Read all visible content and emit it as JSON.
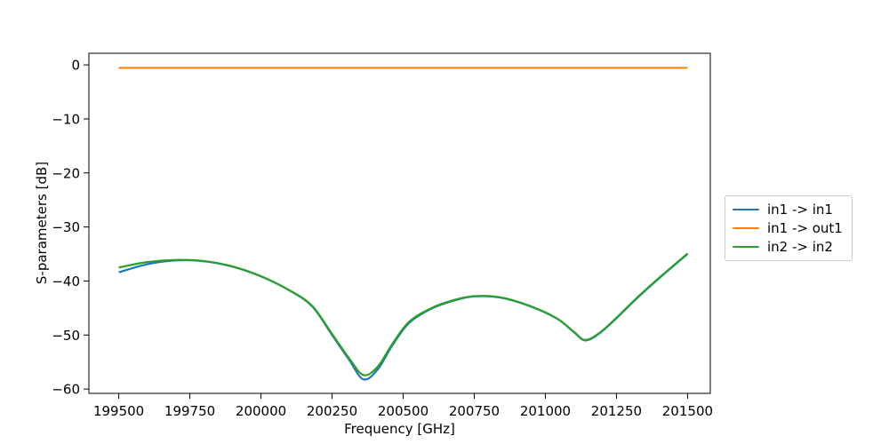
{
  "chart_data": {
    "type": "line",
    "title": "",
    "xlabel": "Frequency [GHz]",
    "ylabel": "S-parameters [dB]",
    "xlim": [
      199395,
      201580
    ],
    "ylim": [
      -60.8,
      2.15
    ],
    "xticks": [
      199500,
      199750,
      200000,
      200250,
      200500,
      200750,
      201000,
      201250,
      201500
    ],
    "yticks": [
      0,
      -10,
      -20,
      -30,
      -40,
      -50,
      -60
    ],
    "grid": false,
    "legend_position": "outside-right",
    "axes_color": "#000000",
    "background": "#ffffff",
    "series": [
      {
        "name": "in1 -> in1",
        "color": "#1f77b4",
        "x": [
          199500,
          199600,
          199700,
          199800,
          199900,
          200000,
          200100,
          200180,
          200250,
          200310,
          200360,
          200410,
          200460,
          200520,
          200600,
          200680,
          200750,
          200840,
          200940,
          201040,
          201100,
          201140,
          201190,
          201250,
          201320,
          201400,
          201500
        ],
        "y": [
          -38.4,
          -36.9,
          -36.2,
          -36.35,
          -37.35,
          -39.15,
          -41.75,
          -44.7,
          -50.0,
          -54.6,
          -58.2,
          -56.4,
          -52.1,
          -47.8,
          -45.1,
          -43.6,
          -42.85,
          -43.05,
          -44.55,
          -46.95,
          -49.45,
          -51.0,
          -49.7,
          -46.9,
          -43.3,
          -39.5,
          -35.0
        ]
      },
      {
        "name": "in1 -> out1",
        "color": "#ff7f0e",
        "x": [
          199500,
          201500
        ],
        "y": [
          -0.55,
          -0.55
        ]
      },
      {
        "name": "in2 -> in2",
        "color": "#2ca02c",
        "x": [
          199500,
          199600,
          199700,
          199800,
          199900,
          200000,
          200100,
          200180,
          200250,
          200310,
          200360,
          200410,
          200460,
          200520,
          200600,
          200680,
          200750,
          200840,
          200940,
          201040,
          201100,
          201140,
          201190,
          201250,
          201320,
          201400,
          201500
        ],
        "y": [
          -37.5,
          -36.5,
          -36.1,
          -36.3,
          -37.3,
          -39.1,
          -41.7,
          -44.6,
          -49.8,
          -54.3,
          -57.4,
          -55.9,
          -51.8,
          -47.6,
          -45.0,
          -43.5,
          -42.8,
          -43.0,
          -44.5,
          -46.9,
          -49.4,
          -50.9,
          -49.6,
          -46.8,
          -43.2,
          -39.4,
          -34.9
        ]
      }
    ]
  }
}
